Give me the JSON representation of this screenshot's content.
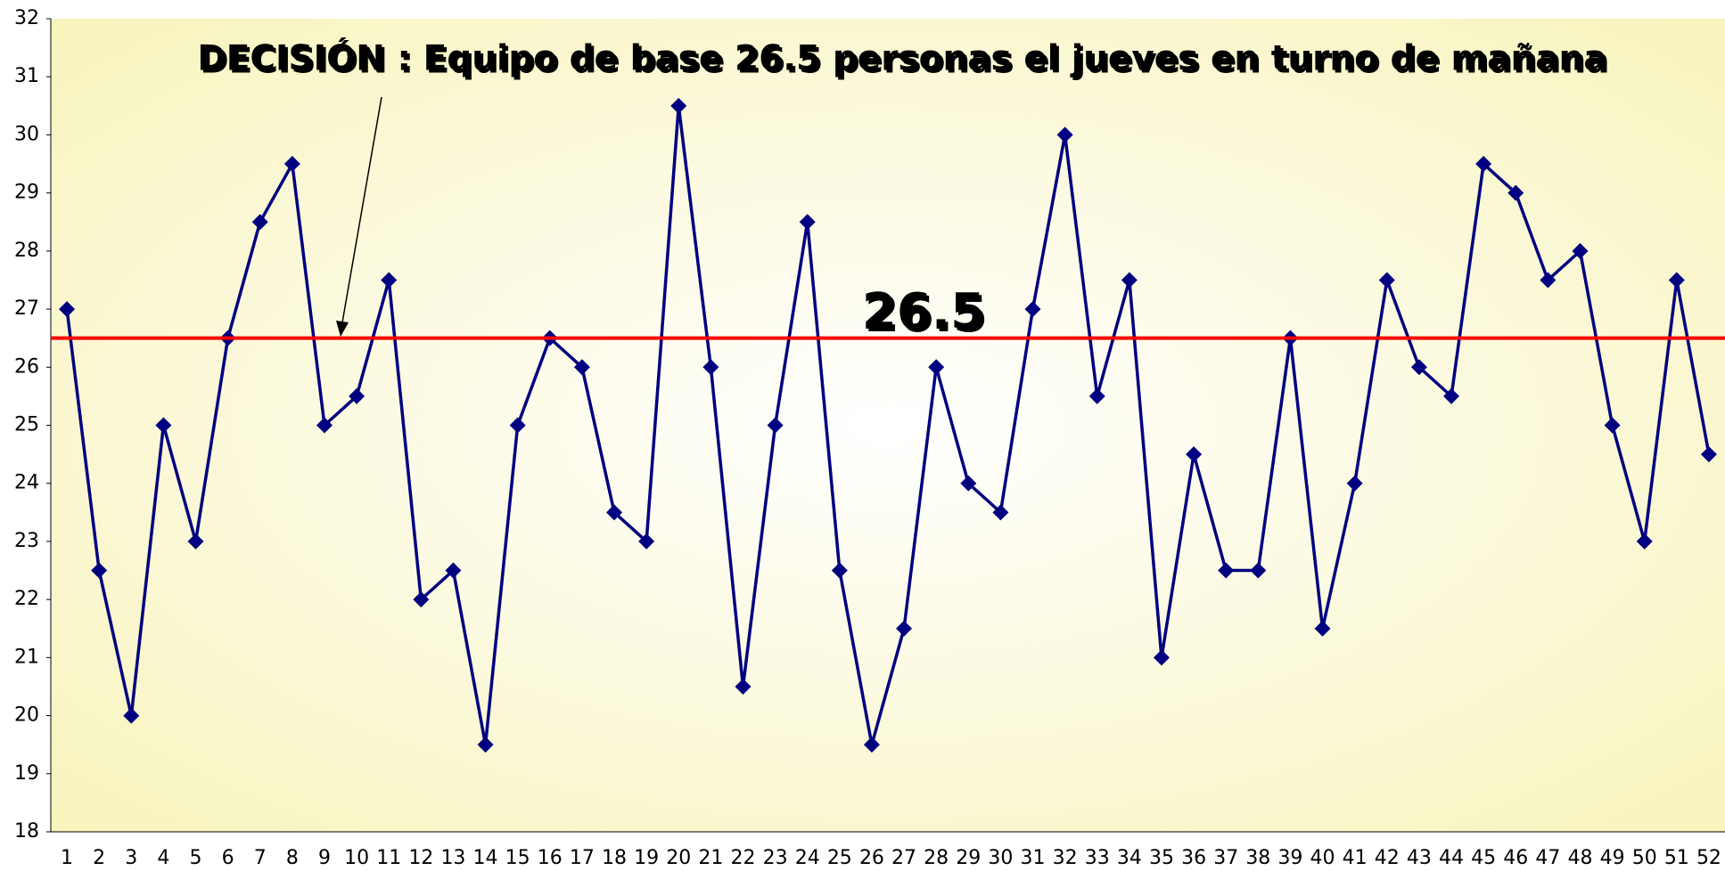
{
  "chart_data": {
    "type": "line",
    "title": "DECISIÓN : Equipo de base 26.5 personas el jueves en turno de mañana",
    "categories": [
      1,
      2,
      3,
      4,
      5,
      6,
      7,
      8,
      9,
      10,
      11,
      12,
      13,
      14,
      15,
      16,
      17,
      18,
      19,
      20,
      21,
      22,
      23,
      24,
      25,
      26,
      27,
      28,
      29,
      30,
      31,
      32,
      33,
      34,
      35,
      36,
      37,
      38,
      39,
      40,
      41,
      42,
      43,
      44,
      45,
      46,
      47,
      48,
      49,
      50,
      51,
      52
    ],
    "series": [
      {
        "color": "#000080",
        "values": [
          27,
          22.5,
          20,
          25,
          23,
          26.5,
          28.5,
          29.5,
          25,
          25.5,
          27.5,
          22,
          22.5,
          19.5,
          25,
          26.5,
          26,
          23.5,
          23,
          30.5,
          26,
          20.5,
          25,
          28.5,
          22.5,
          19.5,
          21.5,
          26,
          24,
          23.5,
          27,
          30,
          25.5,
          27.5,
          21,
          24.5,
          22.5,
          22.5,
          26.5,
          21.5,
          24,
          27.5,
          26,
          25.5,
          29.5,
          29,
          27.5,
          28,
          25,
          23,
          27.5,
          24.5
        ]
      }
    ],
    "reference_line": {
      "value": 26.5,
      "color": "#ff0000"
    },
    "ylim": [
      18,
      32
    ],
    "yticks": [
      18,
      19,
      20,
      21,
      22,
      23,
      24,
      25,
      26,
      27,
      28,
      29,
      30,
      31,
      32
    ]
  }
}
